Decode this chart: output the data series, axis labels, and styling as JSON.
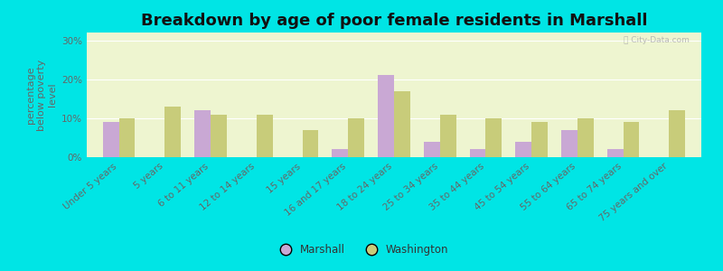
{
  "title": "Breakdown by age of poor female residents in Marshall",
  "ylabel": "percentage\nbelow poverty\nlevel",
  "categories": [
    "Under 5 years",
    "5 years",
    "6 to 11 years",
    "12 to 14 years",
    "15 years",
    "16 and 17 years",
    "18 to 24 years",
    "25 to 34 years",
    "35 to 44 years",
    "45 to 54 years",
    "55 to 64 years",
    "65 to 74 years",
    "75 years and over"
  ],
  "marshall": [
    9,
    0,
    12,
    0,
    0,
    2,
    21,
    4,
    2,
    4,
    7,
    2,
    0
  ],
  "washington": [
    10,
    13,
    11,
    11,
    7,
    10,
    17,
    11,
    10,
    9,
    10,
    9,
    12
  ],
  "marshall_color": "#c9a8d4",
  "washington_color": "#c8cc7a",
  "plot_bg_color": "#eef5d0",
  "outer_bg": "#00e5e5",
  "yticks": [
    0,
    10,
    20,
    30
  ],
  "ylim": [
    0,
    32
  ],
  "bar_width": 0.35,
  "title_fontsize": 13,
  "axis_label_fontsize": 8,
  "tick_fontsize": 7.5,
  "legend_labels": [
    "Marshall",
    "Washington"
  ],
  "watermark": "Ⓢ City-Data.com"
}
